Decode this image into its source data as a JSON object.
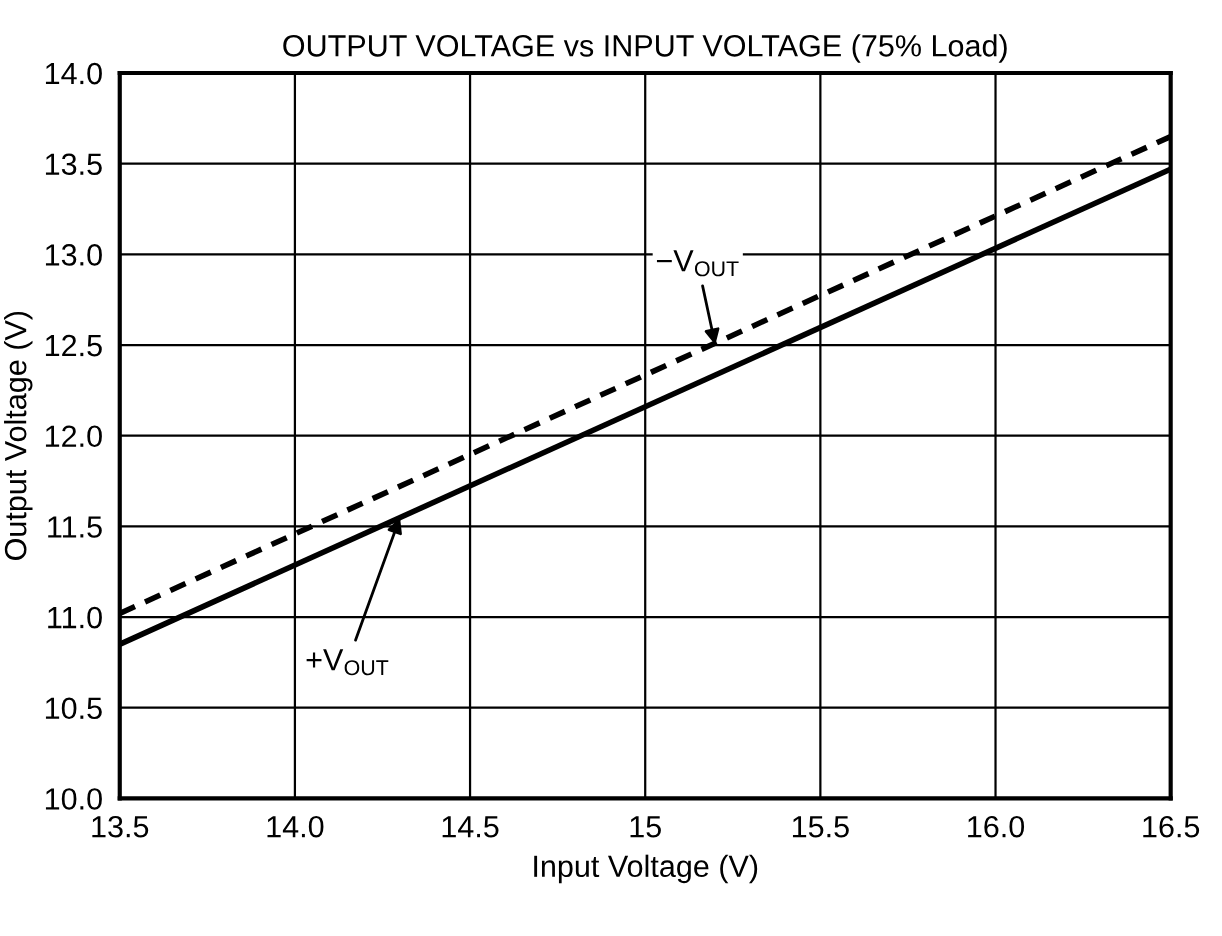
{
  "chart_data": {
    "type": "line",
    "title": "OUTPUT VOLTAGE vs INPUT VOLTAGE (75% Load)",
    "xlabel": "Input Voltage (V)",
    "ylabel": "Output Voltage (V)",
    "x": [
      13.5,
      16.5
    ],
    "series": [
      {
        "color": "#000000",
        "line_style": "solid",
        "values": [
          10.85,
          13.47
        ]
      },
      {
        "color": "#000000",
        "line_style": "dashed",
        "values": [
          11.02,
          13.65
        ]
      }
    ],
    "xlim": [
      13.5,
      16.5
    ],
    "xticks": [
      {
        "value": 13.5,
        "label": "13.5"
      },
      {
        "value": 14,
        "label": "14.0"
      },
      {
        "value": 14.5,
        "label": "14.5"
      },
      15,
      {
        "value": 15.5,
        "label": "15.5"
      },
      {
        "value": 16,
        "label": "16.0"
      },
      {
        "value": 16.5,
        "label": "16.5"
      }
    ],
    "ylim": [
      10,
      14
    ],
    "yticks": [
      {
        "value": 10,
        "label": "10.0"
      },
      {
        "value": 10.5,
        "label": "10.5"
      },
      {
        "value": 11,
        "label": "11.0"
      },
      {
        "value": 11.5,
        "label": "11.5"
      },
      {
        "value": 12,
        "label": "12.0"
      },
      {
        "value": 12.5,
        "label": "12.5"
      },
      {
        "value": 13,
        "label": "13.0"
      },
      {
        "value": 13.5,
        "label": "13.5"
      },
      {
        "value": 14,
        "label": "14.0"
      }
    ],
    "grid": true,
    "annotations": [
      {
        "text": "−V$_{OUT}$",
        "x": 15.2,
        "y": 12.5
      },
      {
        "text": "+V$_{OUT}$",
        "x": 14.3,
        "y": 11.55
      }
    ]
  }
}
